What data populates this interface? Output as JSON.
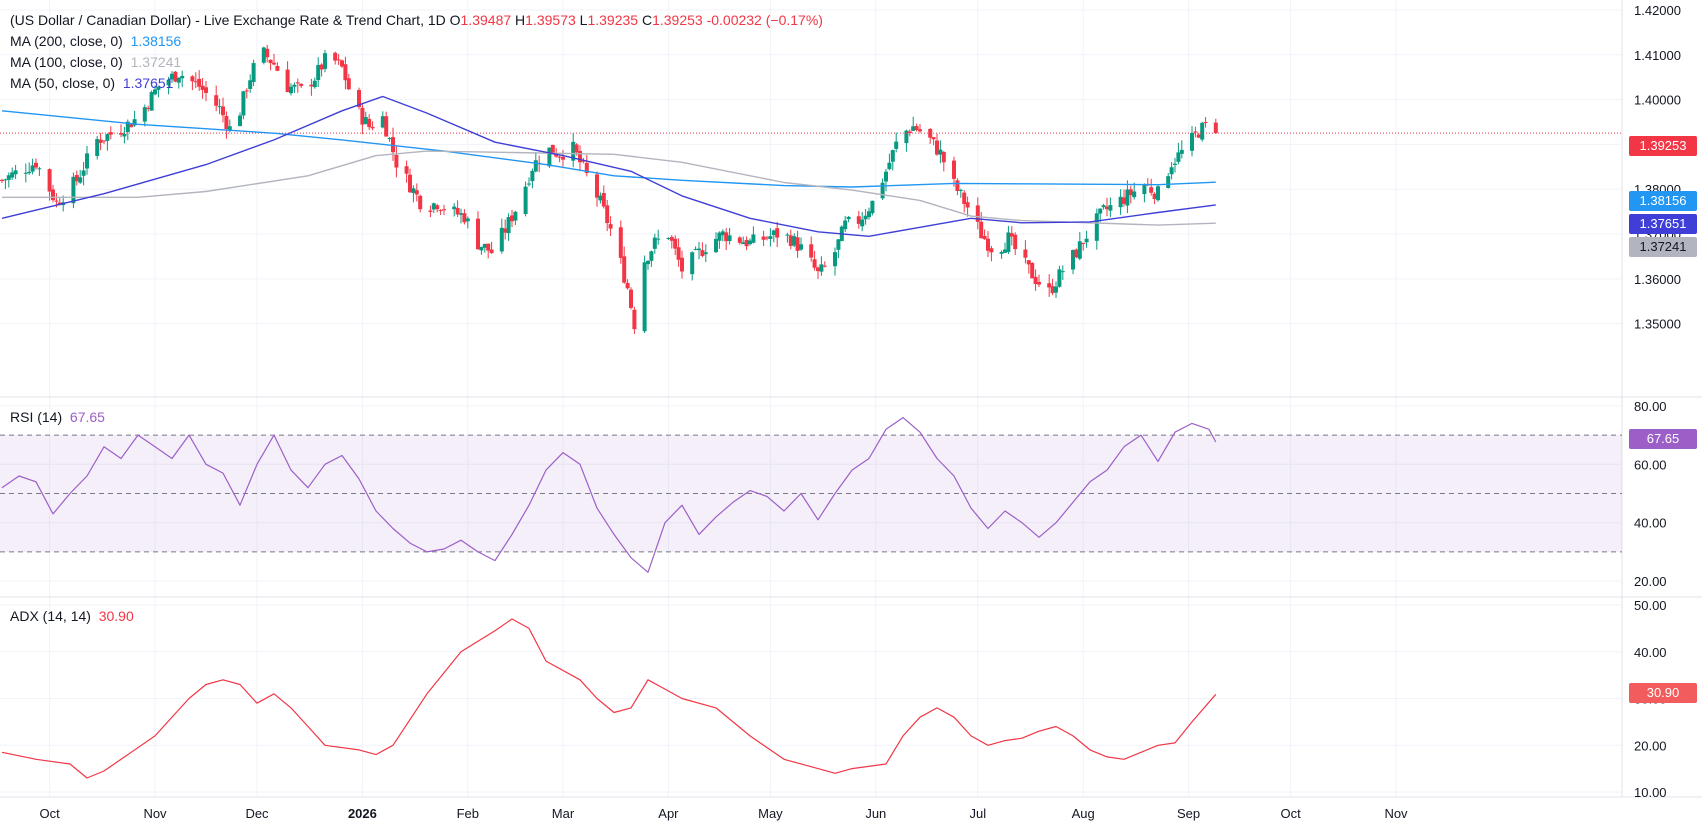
{
  "header": {
    "title": "(US Dollar / Canadian Dollar) - Live Exchange Rate & Trend Chart, 1D",
    "o_label": "O",
    "o_value": "1.39487",
    "h_label": "H",
    "h_value": "1.39573",
    "l_label": "L",
    "l_value": "1.39235",
    "c_label": "C",
    "c_value": "1.39253",
    "change": "-0.00232 (−0.17%)"
  },
  "ma_legend": [
    {
      "label": "MA (200, close, 0)",
      "value": "1.38156",
      "color": "#2196f3"
    },
    {
      "label": "MA (100, close, 0)",
      "value": "1.37241",
      "color": "#b2b5be"
    },
    {
      "label": "MA (50, close, 0)",
      "value": "1.37651",
      "color": "#3f3fd8"
    }
  ],
  "rsi_legend": {
    "label": "RSI (14)",
    "value": "67.65",
    "color": "#9c5fc7"
  },
  "adx_legend": {
    "label": "ADX (14, 14)",
    "value": "30.90",
    "color": "#f23645"
  },
  "badges": {
    "last_price": "1.39253",
    "ma200": "1.38156",
    "ma50": "1.37651",
    "ma100": "1.37241",
    "rsi": "67.65",
    "adx": "30.90"
  },
  "colors": {
    "up": "#089981",
    "down": "#f23645",
    "grid": "#f0f3fa"
  },
  "chart_data": [
    {
      "type": "candlestick",
      "title": "(US Dollar / Canadian Dollar) - Live Exchange Rate & Trend Chart, 1D",
      "x_ticks": [
        "Oct",
        "Nov",
        "Dec",
        "2026",
        "Feb",
        "Mar",
        "Apr",
        "May",
        "Jun",
        "Jul",
        "Aug",
        "Sep",
        "Oct",
        "Nov"
      ],
      "y_ticks": [
        "1.42000",
        "1.41000",
        "1.40000",
        "1.39000",
        "1.38000",
        "1.37000",
        "1.36000",
        "1.35000"
      ],
      "ylim": [
        1.343,
        1.42
      ],
      "last": {
        "open": 1.39487,
        "high": 1.39573,
        "low": 1.39235,
        "close": 1.39253
      },
      "close_path": [
        [
          0,
          1.382
        ],
        [
          5,
          1.384
        ],
        [
          10,
          1.386
        ],
        [
          16,
          1.377
        ],
        [
          22,
          1.382
        ],
        [
          28,
          1.391
        ],
        [
          34,
          1.393
        ],
        [
          40,
          1.396
        ],
        [
          46,
          1.403
        ],
        [
          52,
          1.406
        ],
        [
          58,
          1.403
        ],
        [
          64,
          1.398
        ],
        [
          68,
          1.392
        ],
        [
          72,
          1.403
        ],
        [
          76,
          1.411
        ],
        [
          80,
          1.408
        ],
        [
          84,
          1.403
        ],
        [
          88,
          1.402
        ],
        [
          92,
          1.405
        ],
        [
          96,
          1.41
        ],
        [
          100,
          1.407
        ],
        [
          104,
          1.398
        ],
        [
          108,
          1.394
        ],
        [
          112,
          1.396
        ],
        [
          116,
          1.386
        ],
        [
          120,
          1.381
        ],
        [
          124,
          1.376
        ],
        [
          128,
          1.377
        ],
        [
          132,
          1.375
        ],
        [
          136,
          1.374
        ],
        [
          140,
          1.368
        ],
        [
          144,
          1.366
        ],
        [
          148,
          1.371
        ],
        [
          152,
          1.377
        ],
        [
          156,
          1.385
        ],
        [
          160,
          1.389
        ],
        [
          164,
          1.388
        ],
        [
          168,
          1.389
        ],
        [
          172,
          1.383
        ],
        [
          176,
          1.377
        ],
        [
          180,
          1.369
        ],
        [
          184,
          1.358
        ],
        [
          186,
          1.35
        ],
        [
          188,
          1.363
        ],
        [
          192,
          1.368
        ],
        [
          196,
          1.37
        ],
        [
          200,
          1.362
        ],
        [
          204,
          1.365
        ],
        [
          208,
          1.368
        ],
        [
          212,
          1.37
        ],
        [
          216,
          1.369
        ],
        [
          220,
          1.368
        ],
        [
          224,
          1.369
        ],
        [
          228,
          1.37
        ],
        [
          232,
          1.369
        ],
        [
          236,
          1.366
        ],
        [
          240,
          1.361
        ],
        [
          244,
          1.364
        ],
        [
          248,
          1.372
        ],
        [
          252,
          1.373
        ],
        [
          256,
          1.377
        ],
        [
          260,
          1.384
        ],
        [
          264,
          1.392
        ],
        [
          268,
          1.394
        ],
        [
          272,
          1.392
        ],
        [
          276,
          1.388
        ],
        [
          280,
          1.381
        ],
        [
          284,
          1.376
        ],
        [
          288,
          1.37
        ],
        [
          292,
          1.366
        ],
        [
          296,
          1.369
        ],
        [
          300,
          1.364
        ],
        [
          304,
          1.36
        ],
        [
          308,
          1.357
        ],
        [
          312,
          1.362
        ],
        [
          316,
          1.366
        ],
        [
          320,
          1.371
        ],
        [
          324,
          1.375
        ],
        [
          328,
          1.377
        ],
        [
          332,
          1.379
        ],
        [
          336,
          1.381
        ],
        [
          340,
          1.379
        ],
        [
          344,
          1.386
        ],
        [
          348,
          1.389
        ],
        [
          352,
          1.393
        ],
        [
          356,
          1.3949
        ],
        [
          357,
          1.39253
        ]
      ],
      "series": [
        {
          "name": "MA (200, close, 0)",
          "color": "#2196f3",
          "value": 1.38156,
          "points": [
            [
              0,
              1.3975
            ],
            [
              40,
              1.3945
            ],
            [
              80,
              1.3925
            ],
            [
              100,
              1.391
            ],
            [
              130,
              1.3885
            ],
            [
              160,
              1.3855
            ],
            [
              180,
              1.383
            ],
            [
              200,
              1.382
            ],
            [
              230,
              1.3808
            ],
            [
              250,
              1.3805
            ],
            [
              280,
              1.3813
            ],
            [
              300,
              1.3812
            ],
            [
              340,
              1.381
            ],
            [
              357,
              1.38156
            ]
          ]
        },
        {
          "name": "MA (100, close, 0)",
          "color": "#b2b5be",
          "value": 1.37241,
          "points": [
            [
              0,
              1.3782
            ],
            [
              40,
              1.3782
            ],
            [
              60,
              1.3795
            ],
            [
              90,
              1.383
            ],
            [
              110,
              1.3875
            ],
            [
              125,
              1.3885
            ],
            [
              150,
              1.3882
            ],
            [
              180,
              1.3878
            ],
            [
              200,
              1.386
            ],
            [
              230,
              1.3815
            ],
            [
              250,
              1.3798
            ],
            [
              270,
              1.3775
            ],
            [
              285,
              1.374
            ],
            [
              300,
              1.373
            ],
            [
              340,
              1.372
            ],
            [
              357,
              1.37241
            ]
          ]
        },
        {
          "name": "MA (50, close, 0)",
          "color": "#3f3fd8",
          "value": 1.37651,
          "points": [
            [
              0,
              1.3735
            ],
            [
              30,
              1.379
            ],
            [
              60,
              1.3855
            ],
            [
              80,
              1.391
            ],
            [
              100,
              1.3975
            ],
            [
              112,
              1.4007
            ],
            [
              125,
              1.397
            ],
            [
              145,
              1.3905
            ],
            [
              165,
              1.3875
            ],
            [
              185,
              1.384
            ],
            [
              200,
              1.3785
            ],
            [
              220,
              1.3735
            ],
            [
              240,
              1.3705
            ],
            [
              255,
              1.3695
            ],
            [
              270,
              1.3715
            ],
            [
              285,
              1.3735
            ],
            [
              300,
              1.3725
            ],
            [
              320,
              1.3727
            ],
            [
              340,
              1.3748
            ],
            [
              357,
              1.37651
            ]
          ]
        }
      ]
    },
    {
      "type": "line",
      "title": "RSI (14)",
      "y_ticks": [
        "80.00",
        "60.00",
        "40.00",
        "20.00"
      ],
      "ylim": [
        19,
        81
      ],
      "levels": [
        70,
        50,
        30
      ],
      "series": [
        {
          "name": "RSI (14)",
          "color": "#9c5fc7",
          "points": [
            [
              0,
              52
            ],
            [
              5,
              56
            ],
            [
              10,
              54
            ],
            [
              15,
              43
            ],
            [
              20,
              50
            ],
            [
              25,
              56
            ],
            [
              30,
              66
            ],
            [
              35,
              62
            ],
            [
              40,
              70
            ],
            [
              45,
              66
            ],
            [
              50,
              62
            ],
            [
              55,
              70
            ],
            [
              60,
              60
            ],
            [
              65,
              57
            ],
            [
              70,
              46
            ],
            [
              75,
              60
            ],
            [
              80,
              70
            ],
            [
              85,
              58
            ],
            [
              90,
              52
            ],
            [
              95,
              60
            ],
            [
              100,
              63
            ],
            [
              105,
              55
            ],
            [
              110,
              44
            ],
            [
              115,
              38
            ],
            [
              120,
              33
            ],
            [
              125,
              30
            ],
            [
              130,
              31
            ],
            [
              135,
              34
            ],
            [
              140,
              30
            ],
            [
              145,
              27
            ],
            [
              150,
              36
            ],
            [
              155,
              46
            ],
            [
              160,
              58
            ],
            [
              165,
              64
            ],
            [
              170,
              60
            ],
            [
              175,
              45
            ],
            [
              180,
              36
            ],
            [
              185,
              28
            ],
            [
              190,
              23
            ],
            [
              195,
              40
            ],
            [
              200,
              46
            ],
            [
              205,
              36
            ],
            [
              210,
              42
            ],
            [
              215,
              47
            ],
            [
              220,
              51
            ],
            [
              225,
              49
            ],
            [
              230,
              44
            ],
            [
              235,
              50
            ],
            [
              240,
              41
            ],
            [
              245,
              50
            ],
            [
              250,
              58
            ],
            [
              255,
              62
            ],
            [
              260,
              72
            ],
            [
              265,
              76
            ],
            [
              270,
              71
            ],
            [
              275,
              62
            ],
            [
              280,
              56
            ],
            [
              285,
              45
            ],
            [
              290,
              38
            ],
            [
              295,
              44
            ],
            [
              300,
              40
            ],
            [
              305,
              35
            ],
            [
              310,
              40
            ],
            [
              315,
              47
            ],
            [
              320,
              54
            ],
            [
              325,
              58
            ],
            [
              330,
              66
            ],
            [
              335,
              70
            ],
            [
              340,
              61
            ],
            [
              345,
              71
            ],
            [
              350,
              74
            ],
            [
              355,
              72
            ],
            [
              357,
              67.65
            ]
          ]
        }
      ]
    },
    {
      "type": "line",
      "title": "ADX (14, 14)",
      "y_ticks": [
        "50.00",
        "40.00",
        "30.00",
        "20.00",
        "10.00"
      ],
      "ylim": [
        10,
        50
      ],
      "series": [
        {
          "name": "ADX (14, 14)",
          "color": "#f23645",
          "points": [
            [
              0,
              18.5
            ],
            [
              10,
              17
            ],
            [
              20,
              16
            ],
            [
              25,
              13
            ],
            [
              30,
              14.5
            ],
            [
              35,
              17
            ],
            [
              45,
              22
            ],
            [
              55,
              30
            ],
            [
              60,
              33
            ],
            [
              65,
              34
            ],
            [
              70,
              33
            ],
            [
              75,
              29
            ],
            [
              80,
              31
            ],
            [
              85,
              28
            ],
            [
              90,
              24
            ],
            [
              95,
              20
            ],
            [
              105,
              19
            ],
            [
              110,
              18
            ],
            [
              115,
              20
            ],
            [
              125,
              31
            ],
            [
              135,
              40
            ],
            [
              145,
              44.5
            ],
            [
              150,
              47
            ],
            [
              155,
              45
            ],
            [
              160,
              38
            ],
            [
              170,
              34
            ],
            [
              175,
              30
            ],
            [
              180,
              27
            ],
            [
              185,
              28
            ],
            [
              190,
              34
            ],
            [
              195,
              32
            ],
            [
              200,
              30
            ],
            [
              210,
              28
            ],
            [
              220,
              22
            ],
            [
              230,
              17
            ],
            [
              240,
              15
            ],
            [
              245,
              14
            ],
            [
              250,
              15
            ],
            [
              260,
              16
            ],
            [
              265,
              22
            ],
            [
              270,
              26
            ],
            [
              275,
              28
            ],
            [
              280,
              26
            ],
            [
              285,
              22
            ],
            [
              290,
              20
            ],
            [
              295,
              21
            ],
            [
              300,
              21.5
            ],
            [
              305,
              23
            ],
            [
              310,
              24
            ],
            [
              315,
              22
            ],
            [
              320,
              19
            ],
            [
              325,
              17.5
            ],
            [
              330,
              17
            ],
            [
              335,
              18.5
            ],
            [
              340,
              20
            ],
            [
              345,
              20.5
            ],
            [
              350,
              25
            ],
            [
              357,
              30.9
            ]
          ]
        }
      ]
    }
  ]
}
